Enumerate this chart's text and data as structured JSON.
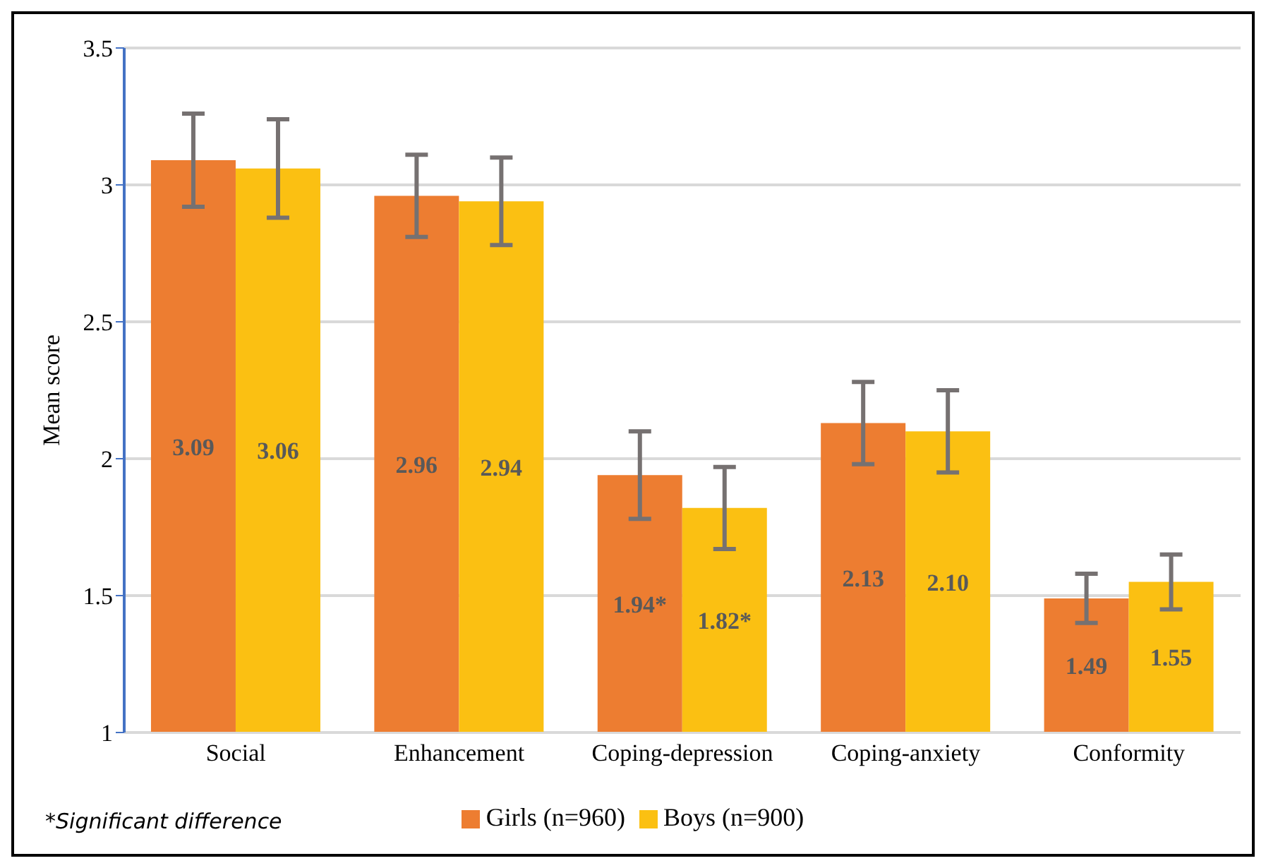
{
  "chart_data": {
    "type": "bar",
    "ylabel": "Mean score",
    "categories": [
      "Social",
      "Enhancement",
      "Coping-depression",
      "Coping-anxiety",
      "Conformity"
    ],
    "series": [
      {
        "name": "Girls (n=960)",
        "color": "#ed7d31",
        "values": [
          3.09,
          2.96,
          1.94,
          2.13,
          1.49
        ],
        "value_labels": [
          "3.09",
          "2.96",
          "1.94*",
          "2.13",
          "1.49"
        ],
        "errors": [
          [
            2.92,
            3.26
          ],
          [
            2.81,
            3.11
          ],
          [
            1.78,
            2.1
          ],
          [
            1.98,
            2.28
          ],
          [
            1.4,
            1.58
          ]
        ]
      },
      {
        "name": "Boys (n=900)",
        "color": "#fbc012",
        "values": [
          3.06,
          2.94,
          1.82,
          2.1,
          1.55
        ],
        "value_labels": [
          "3.06",
          "2.94",
          "1.82*",
          "2.10",
          "1.55"
        ],
        "errors": [
          [
            2.88,
            3.24
          ],
          [
            2.78,
            3.1
          ],
          [
            1.67,
            1.97
          ],
          [
            1.95,
            2.25
          ],
          [
            1.45,
            1.65
          ]
        ]
      }
    ],
    "ylim": [
      1,
      3.5
    ],
    "yticks": [
      1,
      1.5,
      2,
      2.5,
      3,
      3.5
    ],
    "grid": "y",
    "legend": "bottom",
    "annotations": [
      "*Significant difference"
    ]
  }
}
